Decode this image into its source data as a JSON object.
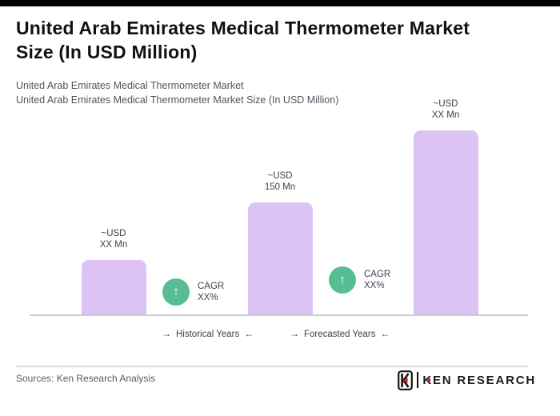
{
  "page": {
    "title_line1": "United Arab Emirates Medical Thermometer Market",
    "title_line2": "Size (In USD Million)",
    "subtitle_line1": "United Arab Emirates Medical Thermometer Market",
    "subtitle_line2": "United Arab Emirates Medical Thermometer Market Size (In USD Million)"
  },
  "chart_data": {
    "type": "bar",
    "title": "United Arab Emirates Medical Thermometer Market Size (In USD Million)",
    "bars": [
      {
        "label_line1": "~USD",
        "label_line2": "XX Mn",
        "estimated_value": 73
      },
      {
        "label_line1": "~USD",
        "label_line2": "150 Mn",
        "estimated_value": 150
      },
      {
        "label_line1": "~USD",
        "label_line2": "XX Mn",
        "estimated_value": 245
      }
    ],
    "cagr_annotations": [
      {
        "line1": "CAGR",
        "line2": "XX%"
      },
      {
        "line1": "CAGR",
        "line2": "XX%"
      }
    ],
    "x_axis_annotations": [
      {
        "label": "Historical Years"
      },
      {
        "label": "Forecasted Years"
      }
    ],
    "bar_color": "#dcc3f4",
    "cagr_circle_color": "#57be94",
    "axis_line_color": "#cdcdcd",
    "ylabel": "",
    "xlabel": "",
    "legend": "none",
    "grid": false
  },
  "icons": {
    "arrow_right": "→",
    "arrow_left": "←",
    "up_arrow": "↑"
  },
  "footer": {
    "sources": "Sources: Ken Research Analysis",
    "logo_text": "KEN RESEARCH",
    "logo_red": "#e02127"
  }
}
